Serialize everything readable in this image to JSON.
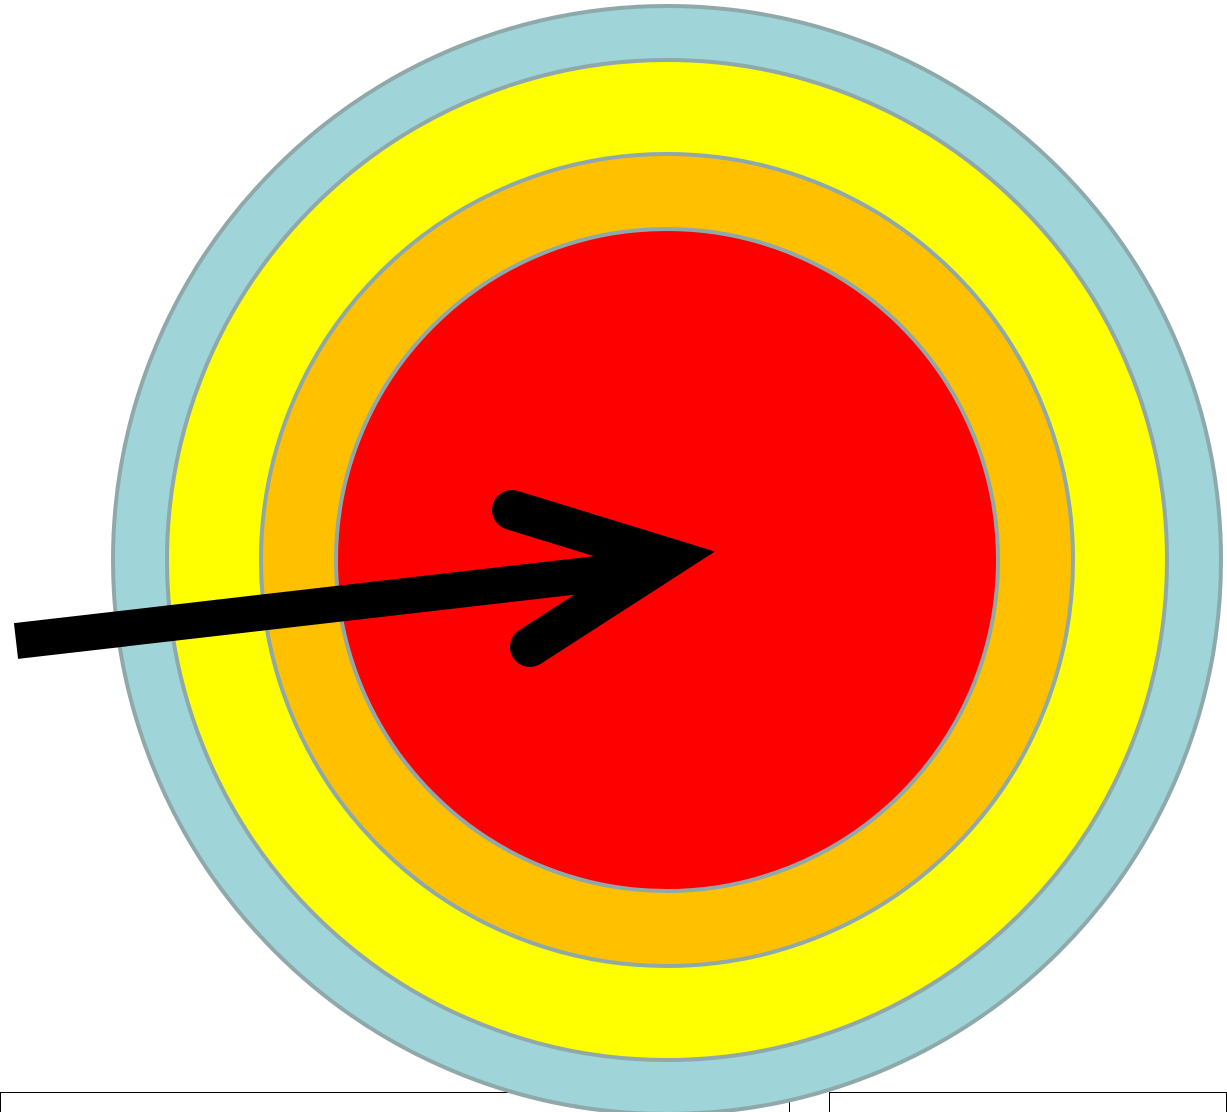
{
  "diagram": {
    "rings": [
      {
        "name": "outer-ring",
        "color": "#9FD4D8"
      },
      {
        "name": "second-ring",
        "color": "#FFFF00"
      },
      {
        "name": "third-ring",
        "color": "#FFC000"
      },
      {
        "name": "bullseye",
        "color": "#FF0000"
      }
    ],
    "ring_stroke_color": "#8FA9AA",
    "arrow_color": "#000000",
    "icons": [
      "target-icon",
      "arrow-icon"
    ]
  }
}
